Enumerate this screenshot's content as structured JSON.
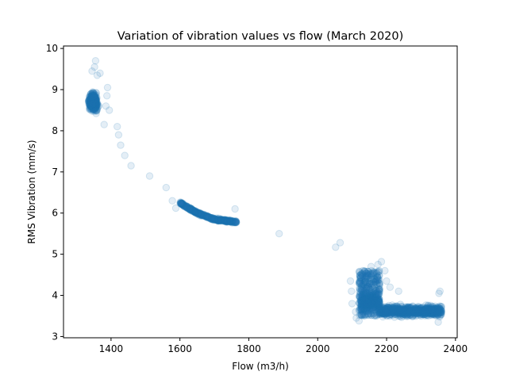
{
  "chart_data": {
    "type": "scatter",
    "title": "Variation of vibration values vs flow (March 2020)",
    "xlabel": "Flow (m3/h)",
    "ylabel": "RMS Vibration (mm/s)",
    "xlim": [
      1262,
      2405
    ],
    "ylim": [
      2.97,
      10.06
    ],
    "xticks": [
      1400,
      1600,
      1800,
      2000,
      2200,
      2400
    ],
    "yticks": [
      3,
      4,
      5,
      6,
      7,
      8,
      9,
      10
    ],
    "grid": false,
    "marker_color": "#1f77b4",
    "marker_alpha": 0.12,
    "clusters": [
      {
        "x_range": [
          1310,
          1385
        ],
        "y_range": [
          8.35,
          9.15
        ],
        "center": [
          1348,
          8.7
        ]
      },
      {
        "x_range": [
          1600,
          1765
        ],
        "y_trend": [
          [
            1600,
            6.25
          ],
          [
            1650,
            6.0
          ],
          [
            1700,
            5.85
          ],
          [
            1765,
            5.78
          ]
        ]
      },
      {
        "x_range": [
          2100,
          2360
        ],
        "y_range": [
          3.35,
          4.4
        ],
        "center": [
          2230,
          3.65
        ]
      }
    ],
    "points": [
      [
        1355,
        9.7
      ],
      [
        1352,
        9.55
      ],
      [
        1345,
        9.45
      ],
      [
        1360,
        9.35
      ],
      [
        1368,
        9.4
      ],
      [
        1390,
        9.05
      ],
      [
        1388,
        8.85
      ],
      [
        1395,
        8.5
      ],
      [
        1380,
        8.15
      ],
      [
        1385,
        8.6
      ],
      [
        1418,
        8.1
      ],
      [
        1422,
        7.9
      ],
      [
        1428,
        7.65
      ],
      [
        1440,
        7.4
      ],
      [
        1458,
        7.15
      ],
      [
        1512,
        6.9
      ],
      [
        1560,
        6.62
      ],
      [
        1578,
        6.3
      ],
      [
        1588,
        6.12
      ],
      [
        1760,
        6.1
      ],
      [
        1888,
        5.5
      ],
      [
        2052,
        5.17
      ],
      [
        2065,
        5.28
      ],
      [
        2095,
        4.35
      ],
      [
        2098,
        4.1
      ],
      [
        2100,
        3.8
      ],
      [
        2110,
        3.6
      ],
      [
        2112,
        3.45
      ],
      [
        2120,
        3.38
      ],
      [
        2155,
        4.7
      ],
      [
        2175,
        4.75
      ],
      [
        2185,
        4.82
      ],
      [
        2195,
        4.6
      ],
      [
        2200,
        4.35
      ],
      [
        2210,
        4.2
      ],
      [
        2235,
        4.1
      ],
      [
        2352,
        4.05
      ],
      [
        2355,
        4.1
      ],
      [
        2350,
        3.35
      ]
    ]
  }
}
